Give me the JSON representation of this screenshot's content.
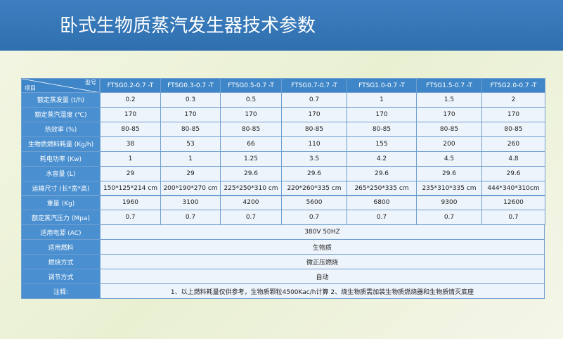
{
  "header": {
    "title": "卧式生物质蒸汽发生器技术参数"
  },
  "table": {
    "corner": {
      "row_label": "项目",
      "col_label": "型号"
    },
    "columns": [
      "FTSG0.2-0.7 -T",
      "FTSG0.3-0.7 -T",
      "FTSG0.5-0.7 -T",
      "FTSG0.7-0.7 -T",
      "FTSG1.0-0.7 -T",
      "FTSG1.5-0.7 -T",
      "FTSG2.0-0.7 -T"
    ],
    "rows": [
      {
        "label": "额定蒸发量 (t/h)",
        "cells": [
          "0.2",
          "0.3",
          "0.5",
          "0.7",
          "1",
          "1.5",
          "2"
        ]
      },
      {
        "label": "额定蒸汽温度 (℃)",
        "cells": [
          "170",
          "170",
          "170",
          "170",
          "170",
          "170",
          "170"
        ]
      },
      {
        "label": "热效率 (%)",
        "cells": [
          "80-85",
          "80-85",
          "80-85",
          "80-85",
          "80-85",
          "80-85",
          "80-85"
        ]
      },
      {
        "label": "生物质燃料耗量 (Kg/h)",
        "cells": [
          "38",
          "53",
          "66",
          "110",
          "155",
          "200",
          "260"
        ]
      },
      {
        "label": "耗电功率 (Kw)",
        "cells": [
          "1",
          "1",
          "1.25",
          "3.5",
          "4.2",
          "4.5",
          "4.8"
        ]
      },
      {
        "label": "水容量 (L)",
        "cells": [
          "29",
          "29",
          "29.6",
          "29.6",
          "29.6",
          "29.6",
          "29.6"
        ]
      },
      {
        "label": "运输尺寸 (长*宽*高)",
        "cells": [
          "150*125*214 cm",
          "200*190*270 cm",
          "225*250*310 cm",
          "220*260*335 cm",
          "265*250*335 cm",
          "235*310*335 cm",
          "444*340*310cm"
        ]
      },
      {
        "label": "重量 (Kg)",
        "cells": [
          "1960",
          "3100",
          "4200",
          "5600",
          "6800",
          "9300",
          "12600"
        ]
      },
      {
        "label": "额定蒸汽压力 (Mpa)",
        "cells": [
          "0.7",
          "0.7",
          "0.7",
          "0.7",
          "0.7",
          "0.7",
          "0.7"
        ]
      },
      {
        "label": "适用电源 (AC)",
        "merged": "380V 50HZ"
      },
      {
        "label": "适用燃料",
        "merged": "生物质"
      },
      {
        "label": "燃烧方式",
        "merged": "微正压燃烧"
      },
      {
        "label": "调节方式",
        "merged": "自动"
      },
      {
        "label": "注释:",
        "merged": "1、以上燃料耗量仅供参考，生物质颗粒4500Kac/h计算  2、烧生物质需加装生物质燃烧器和生物质情灭底座"
      }
    ]
  }
}
